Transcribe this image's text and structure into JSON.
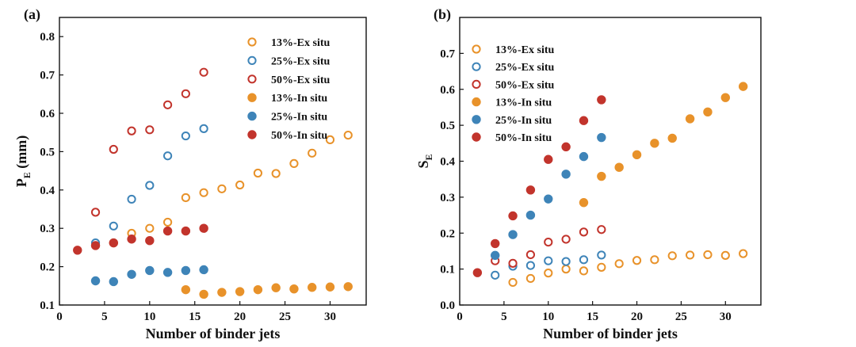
{
  "chart_data": [
    {
      "type": "scatter",
      "panel_label": "(a)",
      "xlabel": "Number of binder jets",
      "ylabel": "P",
      "ylabel_sub": "E",
      "ylabel_unit": " (mm)",
      "xlim": [
        0,
        34
      ],
      "ylim": [
        0.1,
        0.85
      ],
      "xticks": [
        0,
        5,
        10,
        15,
        20,
        25,
        30
      ],
      "yticks": [
        0.1,
        0.2,
        0.3,
        0.4,
        0.5,
        0.6,
        0.7,
        0.8
      ],
      "x_tick_labels": [
        "0",
        "5",
        "10",
        "15",
        "20",
        "25",
        "30"
      ],
      "y_tick_labels": [
        "0.1",
        "0.2",
        "0.3",
        "0.4",
        "0.5",
        "0.6",
        "0.7",
        "0.8"
      ],
      "legend_position": "top-right",
      "series": [
        {
          "name": "13%-Ex situ",
          "color": "#E8922A",
          "filled": false,
          "x": [
            6,
            8,
            10,
            12,
            14,
            16,
            18,
            20,
            22,
            24,
            26,
            28,
            30,
            32
          ],
          "y": [
            0.262,
            0.287,
            0.3,
            0.316,
            0.38,
            0.393,
            0.403,
            0.413,
            0.444,
            0.443,
            0.469,
            0.496,
            0.531,
            0.543
          ]
        },
        {
          "name": "25%-Ex situ",
          "color": "#3E84B8",
          "filled": false,
          "x": [
            4,
            6,
            8,
            10,
            12,
            14,
            16
          ],
          "y": [
            0.262,
            0.306,
            0.376,
            0.412,
            0.489,
            0.541,
            0.56
          ]
        },
        {
          "name": "50%-Ex situ",
          "color": "#C2342C",
          "filled": false,
          "x": [
            4,
            6,
            8,
            10,
            12,
            14,
            16
          ],
          "y": [
            0.342,
            0.506,
            0.554,
            0.557,
            0.622,
            0.651,
            0.707
          ]
        },
        {
          "name": "13%-In situ",
          "color": "#E8922A",
          "filled": true,
          "x": [
            14,
            16,
            18,
            20,
            22,
            24,
            26,
            28,
            30,
            32
          ],
          "y": [
            0.14,
            0.128,
            0.133,
            0.135,
            0.14,
            0.145,
            0.142,
            0.146,
            0.147,
            0.148
          ]
        },
        {
          "name": "25%-In situ",
          "color": "#3E84B8",
          "filled": true,
          "x": [
            4,
            6,
            8,
            10,
            12,
            14,
            16
          ],
          "y": [
            0.163,
            0.161,
            0.18,
            0.19,
            0.185,
            0.19,
            0.192
          ]
        },
        {
          "name": "50%-In situ",
          "color": "#C2342C",
          "filled": true,
          "x": [
            2,
            4,
            6,
            8,
            10,
            12,
            14,
            16
          ],
          "y": [
            0.243,
            0.255,
            0.262,
            0.272,
            0.268,
            0.293,
            0.293,
            0.3
          ]
        }
      ]
    },
    {
      "type": "scatter",
      "panel_label": "(b)",
      "xlabel": "Number of binder jets",
      "ylabel": "S",
      "ylabel_sub": "E",
      "ylabel_unit": "",
      "xlim": [
        0,
        34
      ],
      "ylim": [
        0,
        0.8
      ],
      "xticks": [
        0,
        5,
        10,
        15,
        20,
        25,
        30
      ],
      "yticks": [
        0,
        0.1,
        0.2,
        0.3,
        0.4,
        0.5,
        0.6,
        0.7
      ],
      "x_tick_labels": [
        "0",
        "5",
        "10",
        "15",
        "20",
        "25",
        "30"
      ],
      "y_tick_labels": [
        "0.0",
        "0.1",
        "0.2",
        "0.3",
        "0.4",
        "0.5",
        "0.6",
        "0.7"
      ],
      "legend_position": "top-left",
      "series": [
        {
          "name": "13%-Ex situ",
          "color": "#E8922A",
          "filled": false,
          "x": [
            6,
            8,
            10,
            12,
            14,
            16,
            18,
            20,
            22,
            24,
            26,
            28,
            30,
            32
          ],
          "y": [
            0.063,
            0.074,
            0.089,
            0.1,
            0.095,
            0.105,
            0.115,
            0.124,
            0.126,
            0.137,
            0.139,
            0.14,
            0.138,
            0.143
          ]
        },
        {
          "name": "25%-Ex situ",
          "color": "#3E84B8",
          "filled": false,
          "x": [
            4,
            6,
            8,
            10,
            12,
            14,
            16
          ],
          "y": [
            0.083,
            0.108,
            0.11,
            0.123,
            0.121,
            0.126,
            0.139
          ]
        },
        {
          "name": "50%-Ex situ",
          "color": "#C2342C",
          "filled": false,
          "x": [
            4,
            6,
            8,
            10,
            12,
            14,
            16
          ],
          "y": [
            0.123,
            0.116,
            0.14,
            0.175,
            0.183,
            0.203,
            0.21
          ]
        },
        {
          "name": "13%-In situ",
          "color": "#E8922A",
          "filled": true,
          "x": [
            14,
            16,
            18,
            20,
            22,
            24,
            26,
            28,
            30,
            32
          ],
          "y": [
            0.285,
            0.358,
            0.383,
            0.418,
            0.45,
            0.464,
            0.518,
            0.537,
            0.577,
            0.608
          ]
        },
        {
          "name": "25%-In situ",
          "color": "#3E84B8",
          "filled": true,
          "x": [
            4,
            6,
            8,
            10,
            12,
            14,
            16
          ],
          "y": [
            0.138,
            0.196,
            0.25,
            0.295,
            0.364,
            0.413,
            0.466
          ]
        },
        {
          "name": "50%-In situ",
          "color": "#C2342C",
          "filled": true,
          "x": [
            2,
            4,
            6,
            8,
            10,
            12,
            14,
            16
          ],
          "y": [
            0.09,
            0.171,
            0.248,
            0.32,
            0.405,
            0.44,
            0.513,
            0.571
          ]
        }
      ]
    }
  ]
}
